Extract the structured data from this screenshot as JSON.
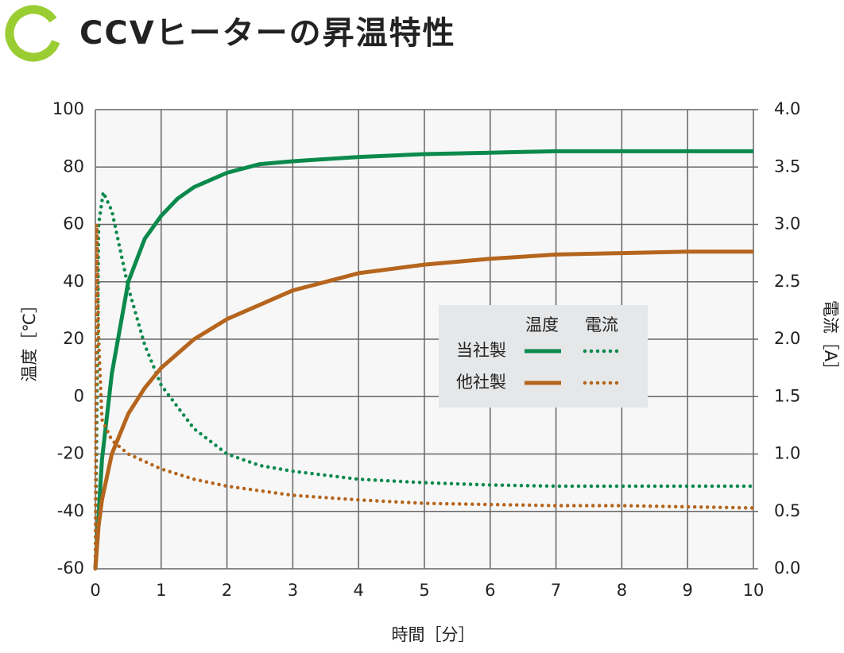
{
  "chart_data": {
    "type": "line",
    "title": "CCVヒーターの昇温特性",
    "x_label": "時間［分］",
    "y_label": "温度［℃］",
    "y2_label": "電流［A］",
    "xlim": [
      0,
      10
    ],
    "xticks": [
      0,
      1,
      2,
      3,
      4,
      5,
      6,
      7,
      8,
      9,
      10
    ],
    "ylim": [
      -60,
      100
    ],
    "yticks": [
      -60,
      -40,
      -20,
      0,
      20,
      40,
      60,
      80,
      100
    ],
    "negative_tick_color": "#e0252a",
    "y2lim": [
      0,
      4
    ],
    "y2ticks": [
      {
        "value": 0,
        "label": "0.0"
      },
      0.5,
      {
        "value": 1,
        "label": "1.0"
      },
      1.5,
      {
        "value": 2,
        "label": "2.0"
      },
      2.5,
      {
        "value": 3,
        "label": "3.0"
      },
      3.5,
      {
        "value": 4,
        "label": "4.0"
      }
    ],
    "grid": true,
    "legend_columns": [
      "温度",
      "電流"
    ],
    "series": [
      {
        "name": "当社製",
        "color": "#0b8a4c",
        "temperature": {
          "x": [
            0,
            0.1,
            0.25,
            0.5,
            0.75,
            1,
            1.25,
            1.5,
            2,
            2.5,
            3,
            4,
            5,
            6,
            7,
            8,
            9,
            10
          ],
          "values": [
            -60,
            -22,
            8,
            40,
            55,
            63,
            69,
            73,
            78,
            81,
            82,
            83.5,
            84.5,
            85,
            85.5,
            85.5,
            85.5,
            85.5
          ]
        },
        "current": {
          "axis": "y2",
          "x": [
            0,
            0.05,
            0.12,
            0.25,
            0.5,
            0.75,
            1,
            1.5,
            2,
            2.5,
            3,
            4,
            5,
            6,
            7,
            8,
            9,
            10
          ],
          "values": [
            0,
            3.0,
            3.28,
            3.12,
            2.45,
            1.95,
            1.6,
            1.22,
            1.0,
            0.9,
            0.85,
            0.78,
            0.75,
            0.73,
            0.72,
            0.72,
            0.72,
            0.72
          ]
        }
      },
      {
        "name": "他社製",
        "color": "#b5651d",
        "temperature": {
          "x": [
            0,
            0.05,
            0.1,
            0.25,
            0.5,
            0.75,
            1,
            1.5,
            2,
            2.5,
            3,
            3.5,
            4,
            5,
            6,
            7,
            8,
            9,
            10
          ],
          "values": [
            -60,
            -45,
            -36,
            -20,
            -6,
            3,
            10,
            20,
            27,
            32,
            37,
            40,
            43,
            46,
            48,
            49.5,
            50,
            50.5,
            50.5
          ]
        },
        "current": {
          "axis": "y2",
          "x": [
            0,
            0.02,
            0.05,
            0.1,
            0.25,
            0.5,
            1,
            1.5,
            2,
            3,
            4,
            5,
            6,
            7,
            8,
            9,
            10
          ],
          "values": [
            0,
            3.0,
            2.0,
            1.3,
            1.12,
            1.0,
            0.87,
            0.78,
            0.72,
            0.64,
            0.6,
            0.57,
            0.56,
            0.55,
            0.55,
            0.54,
            0.53
          ]
        }
      }
    ]
  }
}
